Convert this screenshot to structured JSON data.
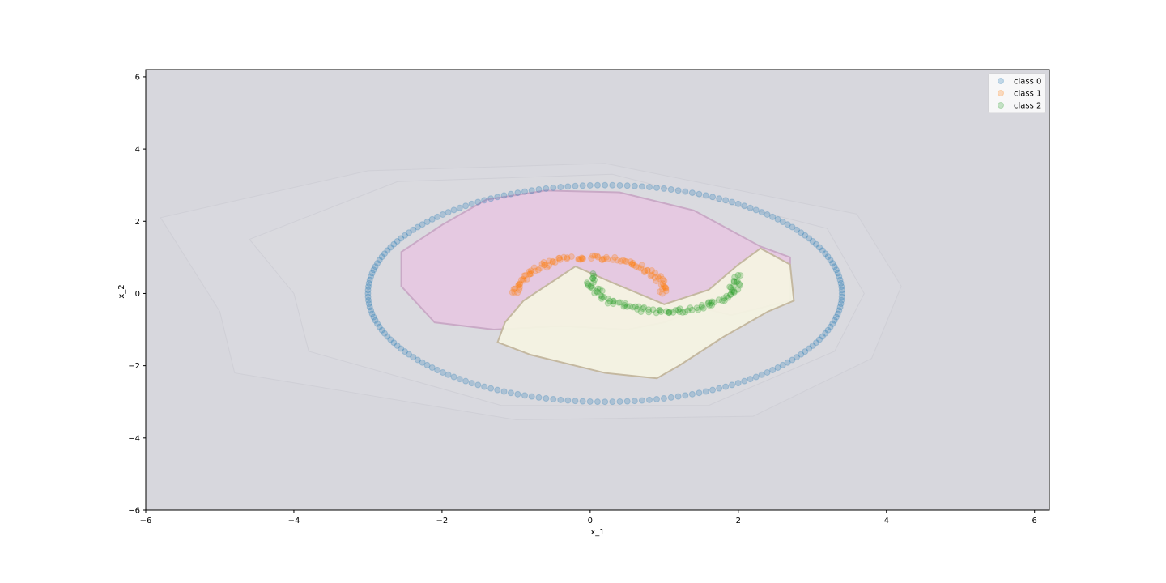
{
  "chart_data": {
    "type": "scatter",
    "title": "",
    "xlabel": "x_1",
    "ylabel": "x_2",
    "xlim": [
      -6,
      6.2
    ],
    "ylim": [
      -6,
      6.2
    ],
    "xticks": [
      -6,
      -4,
      -2,
      0,
      2,
      4,
      6
    ],
    "yticks": [
      -6,
      -4,
      -2,
      0,
      2,
      4,
      6
    ],
    "xtick_labels": [
      "−6",
      "−4",
      "−2",
      "0",
      "2",
      "4",
      "6"
    ],
    "ytick_labels": [
      "−6",
      "−4",
      "−2",
      "0",
      "2",
      "4",
      "6"
    ],
    "grid": false,
    "legend_position": "top-right",
    "background_region_color": "#d7d7dd",
    "decision_regions": [
      {
        "class": 1,
        "color": "#e6c8e0",
        "polygon": [
          [
            -0.6,
            2.85
          ],
          [
            0.4,
            2.8
          ],
          [
            1.4,
            2.3
          ],
          [
            2.3,
            1.3
          ],
          [
            2.7,
            1.0
          ],
          [
            2.7,
            -0.2
          ],
          [
            1.9,
            -0.6
          ],
          [
            1.5,
            -0.4
          ],
          [
            1.0,
            -0.8
          ],
          [
            0.5,
            -1.0
          ],
          [
            -0.4,
            -0.9
          ],
          [
            -1.3,
            -1.0
          ],
          [
            -2.1,
            -0.8
          ],
          [
            -2.55,
            0.2
          ],
          [
            -2.55,
            1.15
          ],
          [
            -2.0,
            1.9
          ],
          [
            -1.4,
            2.6
          ]
        ]
      },
      {
        "class": 2,
        "color": "#f4f3e2",
        "polygon": [
          [
            -0.2,
            0.75
          ],
          [
            0.3,
            0.3
          ],
          [
            1.0,
            -0.3
          ],
          [
            1.6,
            0.1
          ],
          [
            2.0,
            0.8
          ],
          [
            2.3,
            1.25
          ],
          [
            2.7,
            0.8
          ],
          [
            2.75,
            -0.2
          ],
          [
            2.4,
            -0.5
          ],
          [
            1.8,
            -1.2
          ],
          [
            1.2,
            -2.0
          ],
          [
            0.9,
            -2.35
          ],
          [
            0.2,
            -2.2
          ],
          [
            -0.8,
            -1.7
          ],
          [
            -1.25,
            -1.35
          ],
          [
            -1.15,
            -0.8
          ],
          [
            -0.9,
            -0.2
          ]
        ]
      }
    ],
    "series": [
      {
        "name": "class 0",
        "color": "#1f77b4",
        "shape": "circle",
        "x_radius": 3.2,
        "y_radius": 3.0,
        "x_center": 0.2,
        "y_center": 0.0,
        "count": 200
      },
      {
        "name": "class 1",
        "color": "#ff7f0e",
        "shape": "upper-arc",
        "x_center": 0.0,
        "y_center": 0.0,
        "radius": 1.0,
        "count": 100
      },
      {
        "name": "class 2",
        "color": "#2ca02c",
        "shape": "lower-arc",
        "x_center": 1.0,
        "y_center": 0.5,
        "radius": 1.0,
        "count": 100
      }
    ]
  }
}
